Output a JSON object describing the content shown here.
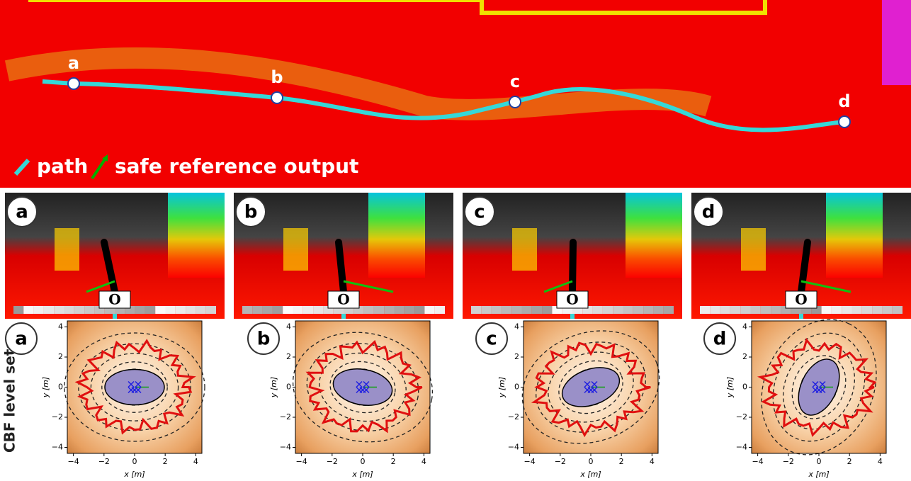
{
  "overview": {
    "points": [
      "a",
      "b",
      "c",
      "d"
    ],
    "legend": [
      "path",
      "safe reference output"
    ]
  },
  "views": [
    {
      "label": "a",
      "marker": "O"
    },
    {
      "label": "b",
      "marker": "O"
    },
    {
      "label": "c",
      "marker": "O"
    },
    {
      "label": "d",
      "marker": "O"
    }
  ],
  "row_label": "CBF level sets",
  "plots": [
    {
      "label": "a",
      "xlabel": "x [m]",
      "ylabel": "y [m]",
      "xlim": [
        -4.4,
        4.4
      ],
      "ylim": [
        -4.4,
        4.4
      ],
      "xticks": [
        {
          "value": -4,
          "label": "−4"
        },
        {
          "value": -2,
          "label": "−2"
        },
        0,
        2,
        4
      ],
      "yticks": [
        {
          "value": -4,
          "label": "−4"
        },
        {
          "value": -2,
          "label": "−2"
        },
        0,
        2,
        4
      ]
    },
    {
      "label": "b",
      "xlabel": "x [m]",
      "ylabel": "y [m]",
      "xlim": [
        -4.4,
        4.4
      ],
      "ylim": [
        -4.4,
        4.4
      ],
      "xticks": [
        {
          "value": -4,
          "label": "−4"
        },
        {
          "value": -2,
          "label": "−2"
        },
        0,
        2,
        4
      ],
      "yticks": [
        {
          "value": -4,
          "label": "−4"
        },
        {
          "value": -2,
          "label": "−2"
        },
        0,
        2,
        4
      ]
    },
    {
      "label": "c",
      "xlabel": "x [m]",
      "ylabel": "y [m]",
      "xlim": [
        -4.4,
        4.4
      ],
      "ylim": [
        -4.4,
        4.4
      ],
      "xticks": [
        {
          "value": -4,
          "label": "−4"
        },
        {
          "value": -2,
          "label": "−2"
        },
        0,
        2,
        4
      ],
      "yticks": [
        {
          "value": -4,
          "label": "−4"
        },
        {
          "value": -2,
          "label": "−2"
        },
        0,
        2,
        4
      ]
    },
    {
      "label": "d",
      "xlabel": "x [m]",
      "ylabel": "y [m]",
      "xlim": [
        -4.4,
        4.4
      ],
      "ylim": [
        -4.4,
        4.4
      ],
      "xticks": [
        {
          "value": -4,
          "label": "−4"
        },
        {
          "value": -2,
          "label": "−2"
        },
        0,
        2,
        4
      ],
      "yticks": [
        {
          "value": -4,
          "label": "−4"
        },
        {
          "value": -2,
          "label": "−2"
        },
        0,
        2,
        4
      ]
    }
  ]
}
